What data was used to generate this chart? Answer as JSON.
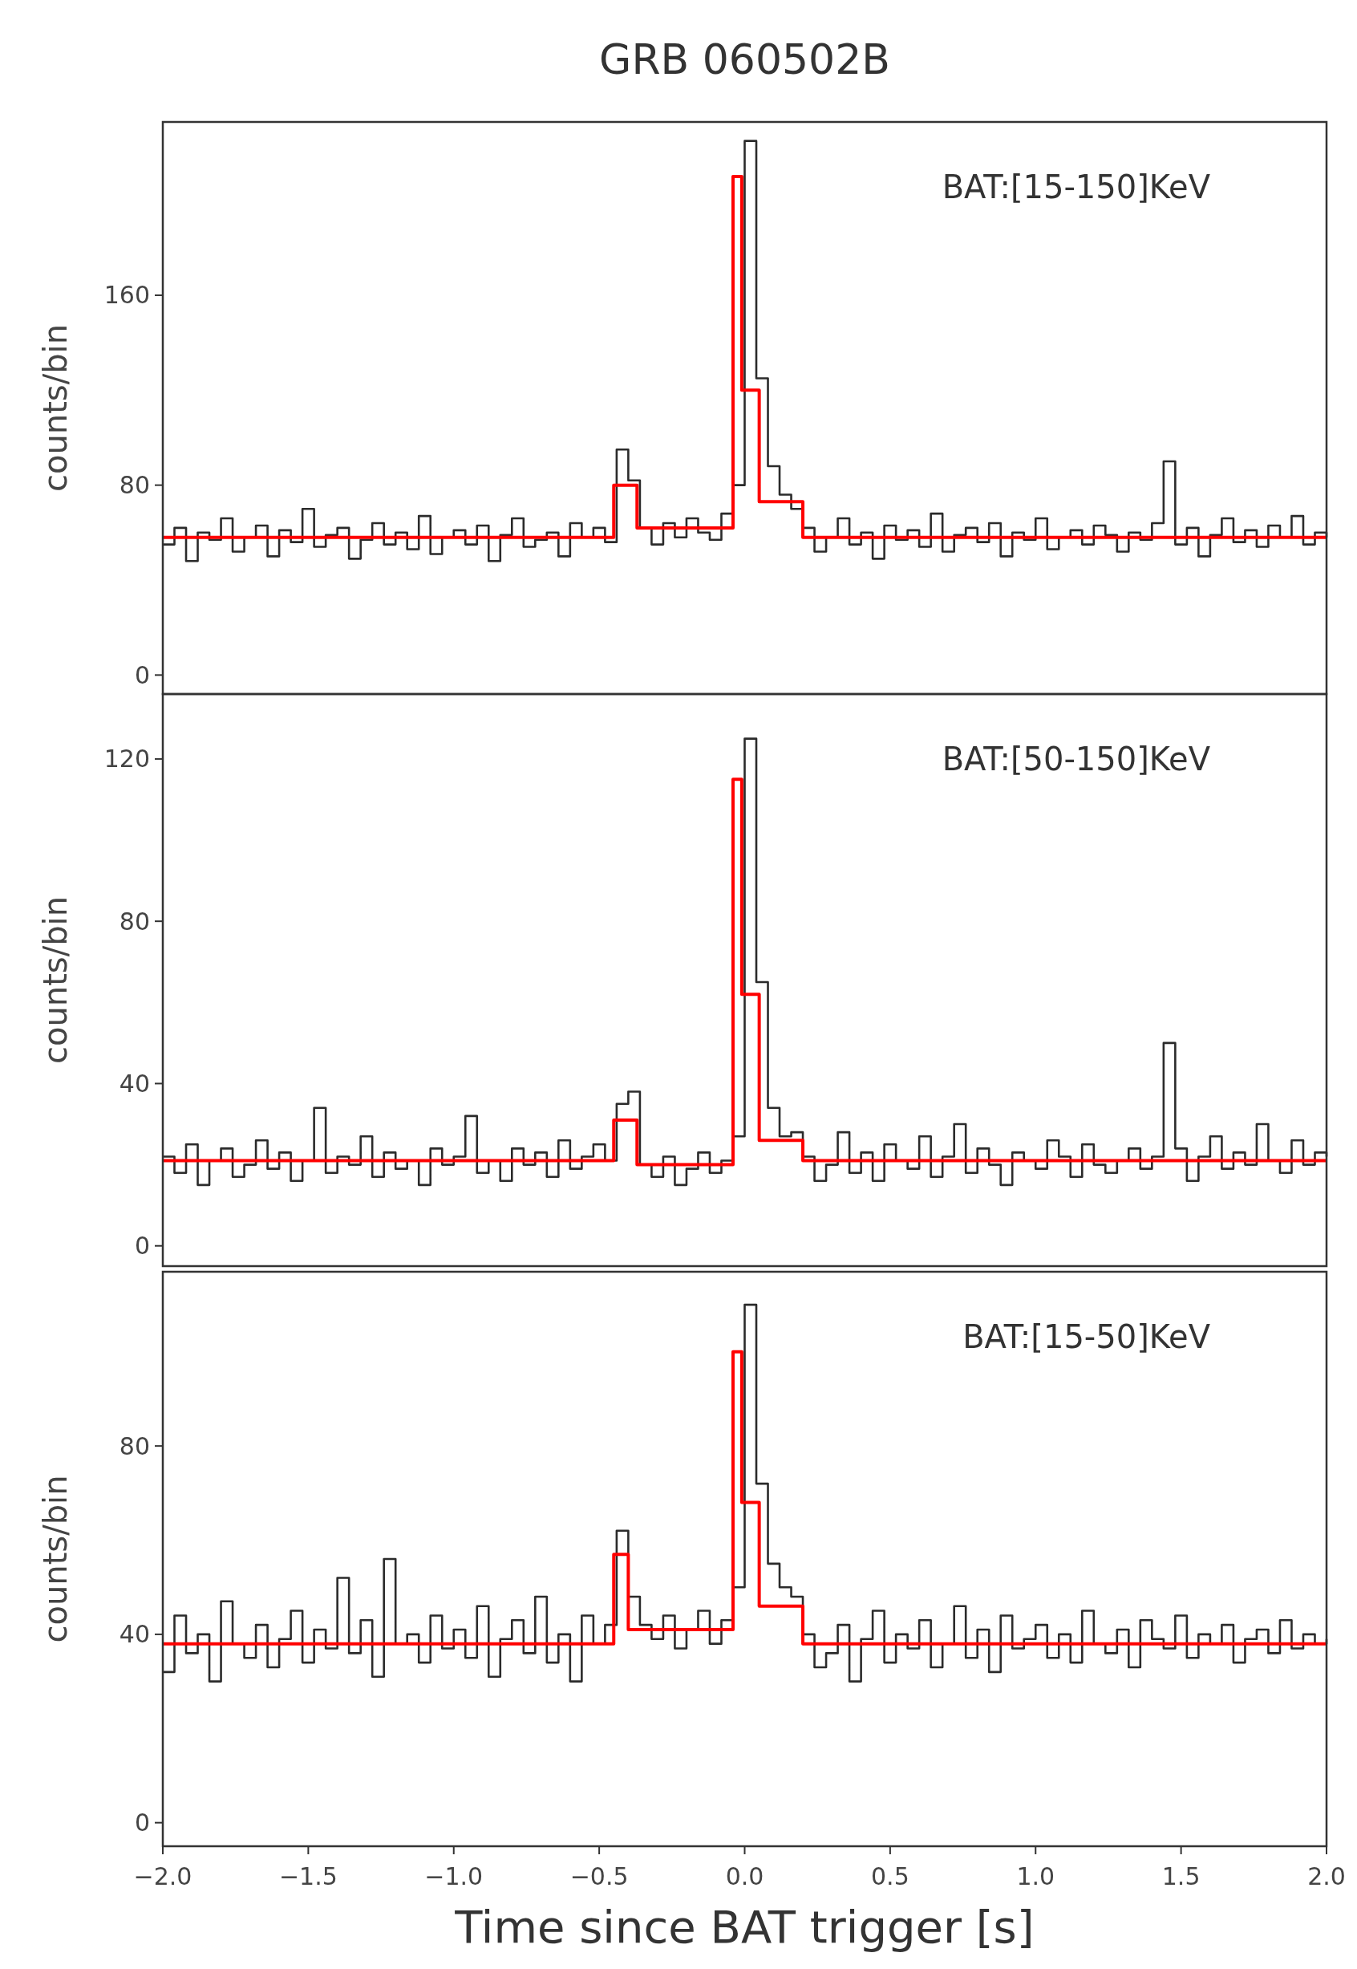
{
  "chart_data": [
    {
      "type": "step",
      "title": "GRB 060502B",
      "ylabel": "counts/bin",
      "annotations": [
        "BAT:[15-150]KeV"
      ],
      "tick_labels": "y",
      "xlim": [
        -2,
        2
      ],
      "ylim": [
        -8,
        233
      ],
      "yticks": [
        0,
        80,
        160
      ],
      "x": [
        -2,
        -1.96,
        -1.92,
        -1.88,
        -1.84,
        -1.8,
        -1.76,
        -1.72,
        -1.68,
        -1.64,
        -1.6,
        -1.56,
        -1.52,
        -1.48,
        -1.44,
        -1.4,
        -1.36,
        -1.32,
        -1.28,
        -1.24,
        -1.2,
        -1.16,
        -1.12,
        -1.08,
        -1.04,
        -1,
        -0.96,
        -0.92,
        -0.88,
        -0.84,
        -0.8,
        -0.76,
        -0.72,
        -0.68,
        -0.64,
        -0.6,
        -0.56,
        -0.52,
        -0.48,
        -0.44,
        -0.4,
        -0.36,
        -0.32,
        -0.28,
        -0.24,
        -0.2,
        -0.16,
        -0.12,
        -0.08,
        -0.04,
        0,
        0.04,
        0.08,
        0.12,
        0.16,
        0.2,
        0.24,
        0.28,
        0.32,
        0.36,
        0.4,
        0.44,
        0.48,
        0.52,
        0.56,
        0.6,
        0.64,
        0.68,
        0.72,
        0.76,
        0.8,
        0.84,
        0.88,
        0.92,
        0.96,
        1,
        1.04,
        1.08,
        1.12,
        1.16,
        1.2,
        1.24,
        1.28,
        1.32,
        1.36,
        1.4,
        1.44,
        1.48,
        1.52,
        1.56,
        1.6,
        1.64,
        1.68,
        1.72,
        1.76,
        1.8,
        1.84,
        1.88,
        1.92,
        1.96,
        2
      ],
      "series": [
        {
          "color": "#2b2b2b",
          "values": [
            55,
            62,
            48,
            60,
            57,
            66,
            52,
            58,
            63,
            50,
            61,
            56,
            70,
            54,
            59,
            62,
            49,
            57,
            64,
            55,
            60,
            53,
            67,
            51,
            58,
            61,
            55,
            63,
            48,
            59,
            66,
            54,
            57,
            60,
            50,
            64,
            58,
            62,
            56,
            95,
            82,
            62,
            55,
            64,
            58,
            66,
            60,
            57,
            68,
            80,
            225,
            125,
            88,
            76,
            70,
            62,
            52,
            58,
            66,
            55,
            60,
            49,
            63,
            57,
            61,
            54,
            68,
            52,
            59,
            62,
            56,
            64,
            50,
            60,
            57,
            66,
            53,
            58,
            61,
            55,
            63,
            59,
            52,
            60,
            57,
            64,
            90,
            55,
            62,
            50,
            59,
            66,
            56,
            61,
            54,
            63,
            58,
            67,
            55,
            60,
            58
          ]
        },
        {
          "color": "#ff0000",
          "x": [
            -2,
            -0.45,
            -0.37,
            -0.04,
            -0.01,
            0.05,
            0.2,
            2
          ],
          "values": [
            58,
            80,
            62,
            210,
            120,
            73,
            58,
            58
          ]
        }
      ]
    },
    {
      "type": "step",
      "ylabel": "counts/bin",
      "annotations": [
        "BAT:[50-150]KeV"
      ],
      "tick_labels": "y",
      "xlim": [
        -2,
        2
      ],
      "ylim": [
        -5,
        136
      ],
      "yticks": [
        0,
        40,
        80,
        120
      ],
      "x": [
        -2,
        -1.96,
        -1.92,
        -1.88,
        -1.84,
        -1.8,
        -1.76,
        -1.72,
        -1.68,
        -1.64,
        -1.6,
        -1.56,
        -1.52,
        -1.48,
        -1.44,
        -1.4,
        -1.36,
        -1.32,
        -1.28,
        -1.24,
        -1.2,
        -1.16,
        -1.12,
        -1.08,
        -1.04,
        -1,
        -0.96,
        -0.92,
        -0.88,
        -0.84,
        -0.8,
        -0.76,
        -0.72,
        -0.68,
        -0.64,
        -0.6,
        -0.56,
        -0.52,
        -0.48,
        -0.44,
        -0.4,
        -0.36,
        -0.32,
        -0.28,
        -0.24,
        -0.2,
        -0.16,
        -0.12,
        -0.08,
        -0.04,
        0,
        0.04,
        0.08,
        0.12,
        0.16,
        0.2,
        0.24,
        0.28,
        0.32,
        0.36,
        0.4,
        0.44,
        0.48,
        0.52,
        0.56,
        0.6,
        0.64,
        0.68,
        0.72,
        0.76,
        0.8,
        0.84,
        0.88,
        0.92,
        0.96,
        1,
        1.04,
        1.08,
        1.12,
        1.16,
        1.2,
        1.24,
        1.28,
        1.32,
        1.36,
        1.4,
        1.44,
        1.48,
        1.52,
        1.56,
        1.6,
        1.64,
        1.68,
        1.72,
        1.76,
        1.8,
        1.84,
        1.88,
        1.92,
        1.96,
        2
      ],
      "series": [
        {
          "color": "#2b2b2b",
          "values": [
            22,
            18,
            25,
            15,
            21,
            24,
            17,
            20,
            26,
            19,
            23,
            16,
            21,
            34,
            18,
            22,
            20,
            27,
            17,
            23,
            19,
            21,
            15,
            24,
            20,
            22,
            32,
            18,
            21,
            16,
            24,
            20,
            23,
            17,
            26,
            19,
            22,
            25,
            21,
            35,
            38,
            20,
            17,
            22,
            15,
            19,
            23,
            18,
            21,
            27,
            125,
            65,
            34,
            27,
            28,
            22,
            16,
            20,
            28,
            18,
            23,
            16,
            25,
            21,
            19,
            27,
            17,
            22,
            30,
            18,
            24,
            20,
            15,
            23,
            21,
            19,
            26,
            22,
            17,
            25,
            20,
            18,
            21,
            24,
            19,
            22,
            50,
            24,
            16,
            22,
            27,
            19,
            23,
            20,
            30,
            21,
            18,
            26,
            20,
            23,
            22
          ]
        },
        {
          "color": "#ff0000",
          "x": [
            -2,
            -0.45,
            -0.37,
            -0.04,
            -0.01,
            0.05,
            0.2,
            2
          ],
          "values": [
            21,
            31,
            20,
            115,
            62,
            26,
            21,
            21
          ]
        }
      ]
    },
    {
      "type": "step",
      "xlabel": "Time since BAT trigger [s]",
      "ylabel": "counts/bin",
      "annotations": [
        "BAT:[15-50]KeV"
      ],
      "xlim": [
        -2,
        2
      ],
      "ylim": [
        -5,
        117
      ],
      "yticks": [
        0,
        40,
        80
      ],
      "xticks": [
        {
          "value": -2,
          "label": "−2.0"
        },
        {
          "value": -1.5,
          "label": "−1.5"
        },
        {
          "value": -1,
          "label": "−1.0"
        },
        {
          "value": -0.5,
          "label": "−0.5"
        },
        {
          "value": 0,
          "label": "0.0"
        },
        {
          "value": 0.5,
          "label": "0.5"
        },
        {
          "value": 1,
          "label": "1.0"
        },
        {
          "value": 1.5,
          "label": "1.5"
        },
        {
          "value": 2,
          "label": "2.0"
        }
      ],
      "x": [
        -2,
        -1.96,
        -1.92,
        -1.88,
        -1.84,
        -1.8,
        -1.76,
        -1.72,
        -1.68,
        -1.64,
        -1.6,
        -1.56,
        -1.52,
        -1.48,
        -1.44,
        -1.4,
        -1.36,
        -1.32,
        -1.28,
        -1.24,
        -1.2,
        -1.16,
        -1.12,
        -1.08,
        -1.04,
        -1,
        -0.96,
        -0.92,
        -0.88,
        -0.84,
        -0.8,
        -0.76,
        -0.72,
        -0.68,
        -0.64,
        -0.6,
        -0.56,
        -0.52,
        -0.48,
        -0.44,
        -0.4,
        -0.36,
        -0.32,
        -0.28,
        -0.24,
        -0.2,
        -0.16,
        -0.12,
        -0.08,
        -0.04,
        0,
        0.04,
        0.08,
        0.12,
        0.16,
        0.2,
        0.24,
        0.28,
        0.32,
        0.36,
        0.4,
        0.44,
        0.48,
        0.52,
        0.56,
        0.6,
        0.64,
        0.68,
        0.72,
        0.76,
        0.8,
        0.84,
        0.88,
        0.92,
        0.96,
        1,
        1.04,
        1.08,
        1.12,
        1.16,
        1.2,
        1.24,
        1.28,
        1.32,
        1.36,
        1.4,
        1.44,
        1.48,
        1.52,
        1.56,
        1.6,
        1.64,
        1.68,
        1.72,
        1.76,
        1.8,
        1.84,
        1.88,
        1.92,
        1.96,
        2
      ],
      "series": [
        {
          "color": "#2b2b2b",
          "values": [
            32,
            44,
            36,
            40,
            30,
            47,
            38,
            35,
            42,
            33,
            39,
            45,
            34,
            41,
            37,
            52,
            36,
            43,
            31,
            56,
            38,
            40,
            34,
            44,
            37,
            41,
            35,
            46,
            31,
            39,
            43,
            36,
            48,
            34,
            40,
            30,
            44,
            38,
            42,
            62,
            48,
            42,
            39,
            44,
            37,
            41,
            45,
            38,
            43,
            50,
            110,
            72,
            55,
            50,
            48,
            40,
            33,
            36,
            42,
            30,
            39,
            45,
            34,
            40,
            37,
            43,
            33,
            38,
            46,
            35,
            41,
            32,
            44,
            37,
            39,
            42,
            35,
            40,
            34,
            45,
            38,
            36,
            41,
            33,
            43,
            39,
            37,
            44,
            35,
            40,
            38,
            42,
            34,
            39,
            41,
            36,
            43,
            37,
            40,
            38,
            39
          ]
        },
        {
          "color": "#ff0000",
          "x": [
            -2,
            -0.45,
            -0.4,
            -0.04,
            -0.01,
            0.05,
            0.2,
            2
          ],
          "values": [
            38,
            57,
            41,
            100,
            68,
            46,
            38,
            38
          ]
        }
      ]
    }
  ]
}
